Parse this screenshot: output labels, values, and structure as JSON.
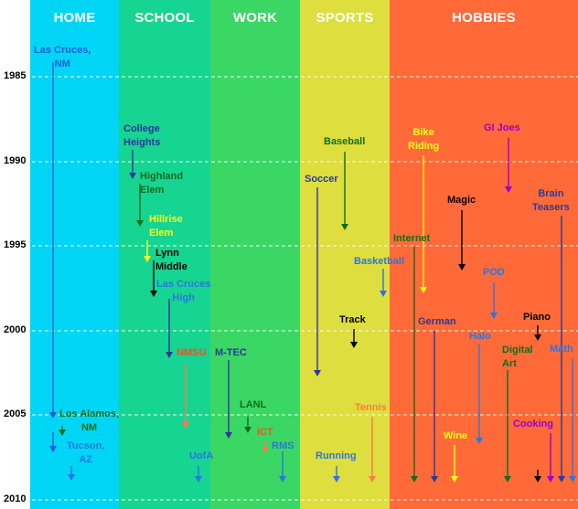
{
  "columns": {
    "home": {
      "label": "HOME",
      "color": "#00d5f5"
    },
    "school": {
      "label": "SCHOOL",
      "color": "#16d492"
    },
    "work": {
      "label": "WORK",
      "color": "#3bd764"
    },
    "sports": {
      "label": "SPORTS",
      "color": "#dede3e"
    },
    "hobbies": {
      "label": "HOBBIES",
      "color": "#ff6a38"
    }
  },
  "years": [
    "1985",
    "1990",
    "1995",
    "2000",
    "2005",
    "2010"
  ],
  "labels": {
    "las_cruces_nm": [
      "Las Cruces,",
      "NM"
    ],
    "los_alamos_nm": [
      "Los Alamos,",
      "NM"
    ],
    "tucson_az": [
      "Tucson,",
      "AZ"
    ],
    "college_heights": [
      "College",
      "Heights"
    ],
    "highland_elem": [
      "Highland",
      "Elem"
    ],
    "hillrise_elem": [
      "Hillrise",
      "Elem"
    ],
    "lynn_middle": [
      "Lynn",
      "Middle"
    ],
    "las_cruces_high": [
      "Las Cruces",
      "High"
    ],
    "nmsu": "NMSU",
    "uofa": "UofA",
    "m_tec": "M-TEC",
    "lanl": "LANL",
    "ict": "ICT",
    "rms": "RMS",
    "baseball": "Baseball",
    "soccer": "Soccer",
    "basketball": "Basketball",
    "track": "Track",
    "tennis": "Tennis",
    "running": "Running",
    "bike_riding": [
      "Bike",
      "Riding"
    ],
    "gi_joes": "GI Joes",
    "magic": "Magic",
    "brain_teasers": [
      "Brain",
      "Teasers"
    ],
    "internet": "Internet",
    "pod": "POD",
    "german": "German",
    "piano": "Piano",
    "halo": "Halo",
    "digital_art": [
      "Digital",
      "Art"
    ],
    "math": "Math",
    "wine": "Wine",
    "cooking": "Cooking"
  },
  "colors": {
    "blue": "#1e5fd8",
    "navy": "#2a3a9a",
    "green": "#0e6f1a",
    "yellow": "#ffff19",
    "black": "#000000",
    "orange": "#ff7a45",
    "sky": "#2a76e0",
    "purple": "#9900cc",
    "orangeRed": "#ff4d1a"
  }
}
